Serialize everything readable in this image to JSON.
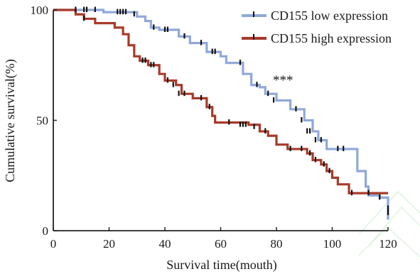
{
  "chart_data": {
    "type": "line",
    "xlabel": "Survival time(mouth)",
    "ylabel": "Cumulative survival(%)",
    "xlim": [
      0,
      120
    ],
    "ylim": [
      0,
      100
    ],
    "xticks": [
      0,
      20,
      40,
      60,
      80,
      100,
      120
    ],
    "yticks": [
      0,
      50,
      100
    ],
    "xtick_labels": [
      "0",
      "20",
      "40",
      "60",
      "80",
      "100",
      "120"
    ],
    "ytick_labels": [
      "0",
      "50",
      "100"
    ],
    "grid": false,
    "legend_position": "top-right",
    "annotation": "***",
    "series": [
      {
        "name": "CD155 low expression",
        "color": "#8fa8d8",
        "steps": [
          [
            0,
            100
          ],
          [
            18,
            99
          ],
          [
            30,
            97
          ],
          [
            33,
            95
          ],
          [
            35,
            92
          ],
          [
            38,
            91
          ],
          [
            45,
            88
          ],
          [
            49,
            85
          ],
          [
            55,
            81
          ],
          [
            60,
            79
          ],
          [
            62,
            76
          ],
          [
            68,
            71
          ],
          [
            71,
            66
          ],
          [
            74,
            65
          ],
          [
            76,
            62
          ],
          [
            80,
            59
          ],
          [
            85,
            55
          ],
          [
            90,
            50
          ],
          [
            93,
            45
          ],
          [
            95,
            41
          ],
          [
            98,
            37
          ],
          [
            109,
            27
          ],
          [
            112,
            20
          ],
          [
            113,
            16
          ],
          [
            117,
            15
          ],
          [
            120,
            5
          ]
        ],
        "censored": [
          [
            8,
            100
          ],
          [
            11,
            100
          ],
          [
            12,
            100
          ],
          [
            15,
            100
          ],
          [
            23,
            99
          ],
          [
            24,
            99
          ],
          [
            25,
            99
          ],
          [
            26,
            99
          ],
          [
            29,
            98
          ],
          [
            36,
            92
          ],
          [
            40,
            91
          ],
          [
            41,
            91
          ],
          [
            47,
            88
          ],
          [
            53,
            85
          ],
          [
            57,
            81
          ],
          [
            58,
            81
          ],
          [
            67,
            76
          ],
          [
            73,
            66
          ],
          [
            77,
            62
          ],
          [
            79,
            59
          ],
          [
            87,
            55
          ],
          [
            89,
            50
          ],
          [
            91,
            45
          ],
          [
            92,
            45
          ],
          [
            94,
            41
          ],
          [
            96,
            41
          ],
          [
            102,
            37
          ],
          [
            104,
            37
          ],
          [
            117,
            15
          ],
          [
            120,
            8
          ]
        ]
      },
      {
        "name": "CD155 high expression",
        "color": "#a83a2a",
        "steps": [
          [
            0,
            100
          ],
          [
            8,
            98
          ],
          [
            11,
            96
          ],
          [
            15,
            94
          ],
          [
            22,
            92
          ],
          [
            25,
            89
          ],
          [
            27,
            84
          ],
          [
            29,
            79
          ],
          [
            31,
            77
          ],
          [
            34,
            75
          ],
          [
            38,
            71
          ],
          [
            40,
            68
          ],
          [
            44,
            66
          ],
          [
            46,
            62
          ],
          [
            50,
            60
          ],
          [
            55,
            56
          ],
          [
            57,
            52
          ],
          [
            58,
            49
          ],
          [
            70,
            48
          ],
          [
            74,
            45
          ],
          [
            77,
            43
          ],
          [
            80,
            39
          ],
          [
            84,
            37
          ],
          [
            91,
            35
          ],
          [
            93,
            32
          ],
          [
            96,
            30
          ],
          [
            98,
            27
          ],
          [
            100,
            24
          ],
          [
            102,
            21
          ],
          [
            106,
            17
          ],
          [
            111,
            17
          ],
          [
            120,
            17
          ]
        ],
        "censored": [
          [
            11,
            96
          ],
          [
            32,
            77
          ],
          [
            33,
            77
          ],
          [
            35,
            75
          ],
          [
            36,
            75
          ],
          [
            41,
            68
          ],
          [
            43,
            66
          ],
          [
            45,
            62
          ],
          [
            47,
            62
          ],
          [
            53,
            60
          ],
          [
            56,
            56
          ],
          [
            63,
            49
          ],
          [
            67,
            48
          ],
          [
            68,
            48
          ],
          [
            69,
            48
          ],
          [
            72,
            47
          ],
          [
            76,
            45
          ],
          [
            85,
            37
          ],
          [
            89,
            37
          ],
          [
            92,
            35
          ],
          [
            94,
            32
          ],
          [
            97,
            30
          ],
          [
            99,
            27
          ],
          [
            107,
            17
          ],
          [
            113,
            17
          ],
          [
            120,
            10
          ]
        ]
      }
    ]
  }
}
